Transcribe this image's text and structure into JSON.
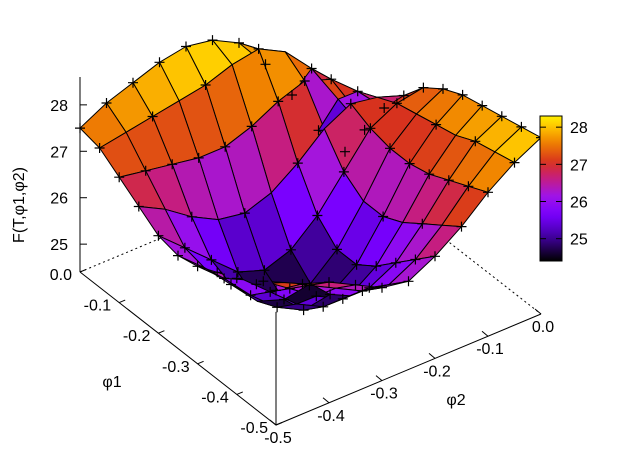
{
  "chart_data": {
    "type": "surface3d",
    "title": "",
    "zlabel": "F(T,φ1,φ2)",
    "xlabel": "φ1",
    "ylabel": "φ2",
    "xlim": [
      -0.5,
      0.0
    ],
    "ylim": [
      -0.5,
      0.0
    ],
    "zlim": [
      24.4,
      28.6
    ],
    "x_ticks": [
      "-0.5",
      "-0.4",
      "-0.3",
      "-0.2",
      "-0.1",
      "0.0"
    ],
    "y_ticks": [
      "-0.5",
      "-0.4",
      "-0.3",
      "-0.2",
      "-0.1",
      "0.0"
    ],
    "z_ticks": [
      "25",
      "26",
      "27",
      "28"
    ],
    "colorbar": {
      "ticks": [
        "25",
        "26",
        "27",
        "28"
      ],
      "range": [
        24.4,
        28.3
      ],
      "palette": "gnuplot pm3d (black-blue-purple-red-orange-yellow)"
    },
    "grid": {
      "x": [
        -0.5,
        -0.45,
        -0.4,
        -0.35,
        -0.3,
        -0.25,
        -0.2,
        -0.15,
        -0.1,
        -0.05,
        0.0
      ],
      "y": [
        -0.5,
        -0.45,
        -0.4,
        -0.35,
        -0.3,
        -0.25,
        -0.2,
        -0.15,
        -0.1,
        -0.05,
        0.0
      ],
      "z": [
        [
          27.3,
          27.2,
          27.0,
          26.7,
          26.4,
          26.3,
          26.6,
          27.0,
          27.5,
          27.9,
          28.2
        ],
        [
          27.1,
          26.9,
          26.6,
          26.3,
          26.0,
          25.9,
          26.2,
          26.7,
          27.3,
          27.8,
          28.1
        ],
        [
          26.9,
          26.6,
          26.2,
          25.8,
          25.5,
          25.5,
          25.8,
          26.4,
          27.1,
          27.7,
          28.0
        ],
        [
          26.7,
          26.3,
          25.8,
          25.3,
          25.0,
          25.0,
          25.4,
          26.1,
          26.9,
          27.5,
          27.9
        ],
        [
          26.5,
          26.0,
          25.4,
          24.9,
          24.6,
          24.7,
          25.1,
          25.9,
          26.8,
          27.4,
          27.8
        ],
        [
          26.4,
          25.9,
          25.3,
          24.7,
          24.5,
          24.6,
          25.1,
          25.9,
          26.8,
          27.3,
          27.6
        ],
        [
          26.5,
          26.0,
          25.5,
          25.0,
          24.8,
          25.0,
          25.5,
          26.2,
          26.9,
          27.2,
          27.3
        ],
        [
          26.8,
          26.5,
          26.1,
          25.8,
          25.7,
          25.9,
          26.3,
          26.8,
          27.1,
          27.0,
          26.8
        ],
        [
          27.1,
          27.0,
          26.9,
          26.8,
          26.8,
          27.0,
          27.3,
          27.5,
          27.3,
          26.8,
          26.2
        ],
        [
          27.4,
          27.5,
          27.6,
          27.7,
          27.8,
          28.0,
          28.1,
          27.8,
          27.2,
          26.3,
          25.4
        ],
        [
          27.5,
          27.8,
          28.0,
          28.2,
          28.3,
          28.2,
          27.9,
          27.2,
          26.3,
          25.3,
          24.6
        ]
      ]
    }
  }
}
